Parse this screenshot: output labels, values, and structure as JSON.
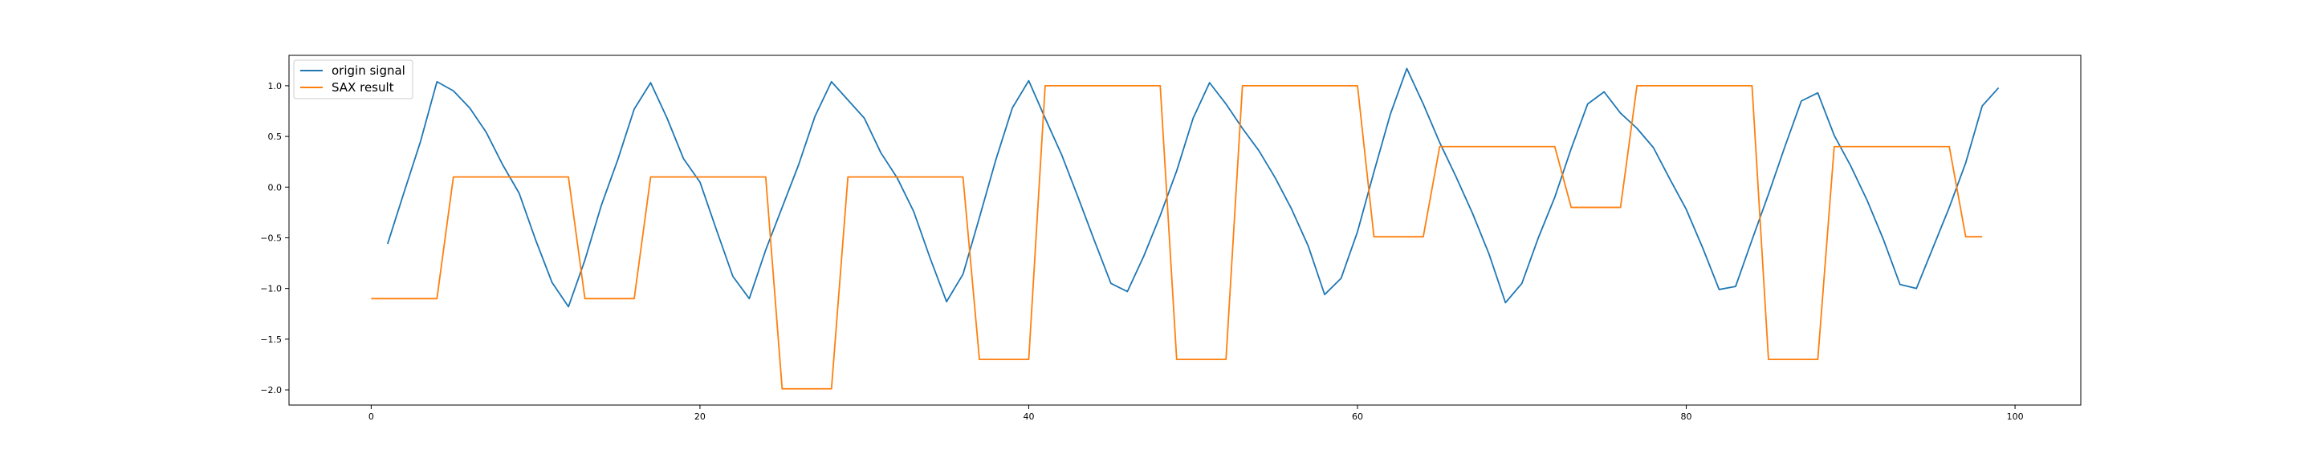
{
  "chart_data": {
    "type": "line",
    "title": "",
    "xlabel": "",
    "ylabel": "",
    "xlim": [
      -5,
      104
    ],
    "ylim": [
      -2.15,
      1.3
    ],
    "xticks": [
      0,
      20,
      40,
      60,
      80,
      100
    ],
    "yticks": [
      -2.0,
      -1.5,
      -1.0,
      -0.5,
      0.0,
      0.5,
      1.0
    ],
    "xtick_labels": [
      "0",
      "20",
      "40",
      "60",
      "80",
      "100"
    ],
    "ytick_labels": [
      "−2.0",
      "−1.5",
      "−1.0",
      "−0.5",
      "0.0",
      "0.5",
      "1.0"
    ],
    "grid": false,
    "legend_position": "top-left",
    "series": [
      {
        "name": "origin signal",
        "color": "#1f77b4",
        "x": [
          1,
          2,
          3,
          4,
          5,
          6,
          7,
          8,
          9,
          10,
          11,
          12,
          13,
          14,
          15,
          16,
          17,
          18,
          19,
          20,
          21,
          22,
          23,
          24,
          25,
          26,
          27,
          28,
          29,
          30,
          31,
          32,
          33,
          34,
          35,
          36,
          37,
          38,
          39,
          40,
          41,
          42,
          43,
          44,
          45,
          46,
          47,
          48,
          49,
          50,
          51,
          52,
          53,
          54,
          55,
          56,
          57,
          58,
          59,
          60,
          61,
          62,
          63,
          64,
          65,
          66,
          67,
          68,
          69,
          70,
          71,
          72,
          73,
          74,
          75,
          76,
          77,
          78,
          79,
          80,
          81,
          82,
          83,
          84,
          85,
          86,
          87,
          88,
          89,
          90,
          91,
          92,
          93,
          94,
          95,
          96,
          97,
          98,
          99
        ],
        "values": [
          -0.56,
          -0.05,
          0.45,
          1.04,
          0.95,
          0.78,
          0.54,
          0.22,
          -0.06,
          -0.52,
          -0.94,
          -1.18,
          -0.72,
          -0.18,
          0.27,
          0.77,
          1.03,
          0.68,
          0.28,
          0.05,
          -0.42,
          -0.88,
          -1.1,
          -0.62,
          -0.2,
          0.22,
          0.7,
          1.04,
          0.86,
          0.68,
          0.34,
          0.09,
          -0.24,
          -0.7,
          -1.13,
          -0.86,
          -0.3,
          0.27,
          0.78,
          1.05,
          0.68,
          0.32,
          -0.1,
          -0.53,
          -0.95,
          -1.03,
          -0.68,
          -0.28,
          0.16,
          0.68,
          1.03,
          0.82,
          0.58,
          0.36,
          0.09,
          -0.22,
          -0.58,
          -1.06,
          -0.9,
          -0.44,
          0.15,
          0.72,
          1.17,
          0.82,
          0.44,
          0.1,
          -0.26,
          -0.66,
          -1.14,
          -0.95,
          -0.5,
          -0.1,
          0.38,
          0.82,
          0.94,
          0.73,
          0.58,
          0.39,
          0.08,
          -0.22,
          -0.6,
          -1.01,
          -0.98,
          -0.52,
          -0.07,
          0.4,
          0.85,
          0.93,
          0.51,
          0.21,
          -0.13,
          -0.52,
          -0.96,
          -1.0,
          -0.6,
          -0.2,
          0.24,
          0.8,
          0.98
        ]
      },
      {
        "name": "SAX result",
        "color": "#ff7f0e",
        "x": [
          0,
          4,
          5,
          12,
          13,
          16,
          17,
          24,
          25,
          28,
          29,
          36,
          37,
          40,
          41,
          48,
          49,
          52,
          53,
          60,
          61,
          64,
          65,
          72,
          73,
          76,
          77,
          84,
          85,
          88,
          89,
          96,
          97,
          98
        ],
        "values": [
          -1.1,
          -1.1,
          0.1,
          0.1,
          -1.1,
          -1.1,
          0.1,
          0.1,
          -1.99,
          -1.99,
          0.1,
          0.1,
          -1.7,
          -1.7,
          1.0,
          1.0,
          -1.7,
          -1.7,
          1.0,
          1.0,
          -0.49,
          -0.49,
          0.4,
          0.4,
          -0.2,
          -0.2,
          1.0,
          1.0,
          -1.7,
          -1.7,
          0.4,
          0.4,
          -0.49,
          -0.49
        ]
      }
    ]
  }
}
